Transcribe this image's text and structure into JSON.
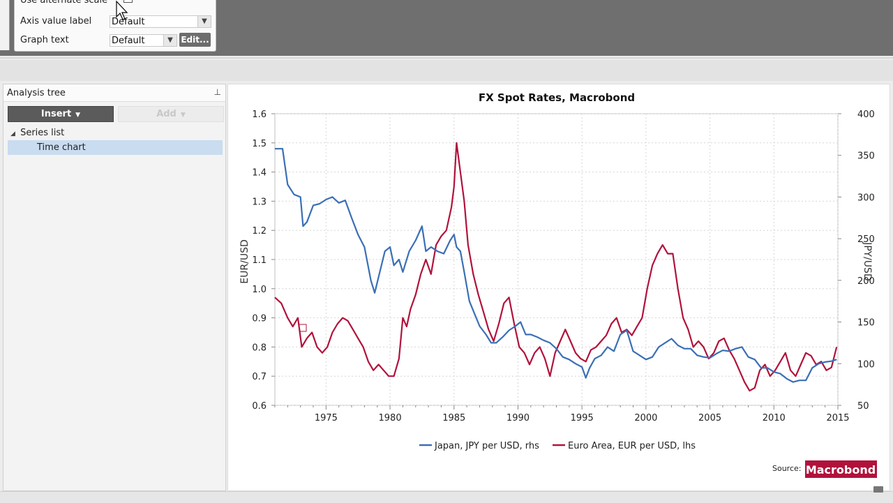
{
  "properties": {
    "use_alternate_scale_label": "Use alternate scale",
    "use_alternate_scale_check": "✓",
    "axis_value_label": "Axis value label",
    "axis_value_value": "Default",
    "graph_text_label": "Graph text",
    "graph_text_value": "Default",
    "edit_button": "Edit..."
  },
  "analysis_tree": {
    "title": "Analysis tree",
    "insert_button": "Insert",
    "add_button": "Add",
    "items": [
      {
        "label": "Series list"
      },
      {
        "label": "Time chart"
      }
    ]
  },
  "chart": {
    "source_label": "Source:",
    "logo_text": "Macrobond",
    "colors": {
      "japan": "#3a6fb5",
      "euro": "#b1123c"
    }
  },
  "chart_data": {
    "type": "line",
    "title": "FX Spot Rates, Macrobond",
    "ylabel_left": "EUR/USD",
    "ylabel_right": "JPY/USD",
    "xlim": [
      1971,
      2015
    ],
    "ylim_left": [
      0.6,
      1.6
    ],
    "ylim_right": [
      50,
      400
    ],
    "x_ticks": [
      "1975",
      "1980",
      "1985",
      "1990",
      "1995",
      "2000",
      "2005",
      "2010",
      "2015"
    ],
    "y_left_ticks": [
      "0.6",
      "0.7",
      "0.8",
      "0.9",
      "1.0",
      "1.1",
      "1.2",
      "1.3",
      "1.4",
      "1.5",
      "1.6"
    ],
    "y_right_ticks": [
      "50",
      "100",
      "150",
      "200",
      "250",
      "300",
      "350",
      "400"
    ],
    "series": [
      {
        "name": "Japan, JPY per USD, rhs",
        "axis": "right",
        "x": [
          1971.0,
          1971.6,
          1972.0,
          1972.5,
          1973.0,
          1973.2,
          1973.5,
          1974.0,
          1974.5,
          1975.0,
          1975.5,
          1976.0,
          1976.5,
          1977.0,
          1977.5,
          1978.0,
          1978.5,
          1978.8,
          1979.2,
          1979.6,
          1980.0,
          1980.3,
          1980.7,
          1981.0,
          1981.5,
          1982.0,
          1982.5,
          1982.8,
          1983.2,
          1983.7,
          1984.2,
          1984.7,
          1985.0,
          1985.2,
          1985.5,
          1985.8,
          1986.2,
          1986.6,
          1987.0,
          1987.5,
          1987.9,
          1988.3,
          1988.8,
          1989.3,
          1989.8,
          1990.2,
          1990.6,
          1991.0,
          1991.5,
          1992.0,
          1992.5,
          1993.0,
          1993.5,
          1994.0,
          1994.5,
          1995.0,
          1995.3,
          1995.6,
          1996.0,
          1996.5,
          1997.0,
          1997.5,
          1998.0,
          1998.5,
          1999.0,
          1999.5,
          2000.0,
          2000.5,
          2001.0,
          2001.5,
          2002.0,
          2002.5,
          2003.0,
          2003.5,
          2004.0,
          2004.5,
          2005.0,
          2005.5,
          2006.0,
          2006.5,
          2007.0,
          2007.5,
          2008.0,
          2008.5,
          2009.0,
          2009.5,
          2010.0,
          2010.5,
          2011.0,
          2011.5,
          2012.0,
          2012.5,
          2013.0,
          2013.5,
          2014.0,
          2014.5,
          2014.9
        ],
        "values": [
          358,
          358,
          315,
          303,
          300,
          265,
          270,
          290,
          292,
          297,
          300,
          293,
          296,
          275,
          255,
          240,
          200,
          185,
          210,
          235,
          240,
          218,
          225,
          210,
          235,
          248,
          265,
          235,
          240,
          235,
          232,
          248,
          255,
          240,
          235,
          210,
          175,
          160,
          145,
          135,
          125,
          125,
          132,
          140,
          145,
          150,
          135,
          135,
          132,
          128,
          125,
          118,
          108,
          105,
          100,
          96,
          83,
          95,
          106,
          110,
          120,
          115,
          135,
          140,
          115,
          110,
          105,
          108,
          120,
          125,
          130,
          122,
          118,
          118,
          110,
          108,
          107,
          112,
          116,
          115,
          118,
          120,
          108,
          105,
          95,
          95,
          90,
          88,
          82,
          78,
          80,
          80,
          95,
          100,
          102,
          103,
          105
        ]
      },
      {
        "name": "Euro Area, EUR per USD, lhs",
        "axis": "left",
        "x": [
          1971.0,
          1971.5,
          1972.0,
          1972.4,
          1972.8,
          1973.1,
          1973.5,
          1973.9,
          1974.3,
          1974.7,
          1975.1,
          1975.5,
          1975.9,
          1976.3,
          1976.7,
          1977.1,
          1977.5,
          1977.9,
          1978.3,
          1978.7,
          1979.1,
          1979.5,
          1979.9,
          1980.3,
          1980.7,
          1981.0,
          1981.3,
          1981.6,
          1982.0,
          1982.4,
          1982.8,
          1983.2,
          1983.6,
          1984.0,
          1984.4,
          1984.8,
          1985.0,
          1985.2,
          1985.5,
          1985.8,
          1986.1,
          1986.5,
          1986.9,
          1987.3,
          1987.7,
          1988.1,
          1988.5,
          1988.9,
          1989.3,
          1989.7,
          1990.1,
          1990.5,
          1990.9,
          1991.3,
          1991.7,
          1992.1,
          1992.5,
          1992.9,
          1993.3,
          1993.7,
          1994.1,
          1994.5,
          1994.9,
          1995.3,
          1995.7,
          1996.1,
          1996.5,
          1996.9,
          1997.3,
          1997.7,
          1998.1,
          1998.5,
          1998.9,
          1999.3,
          1999.7,
          2000.1,
          2000.5,
          2000.9,
          2001.3,
          2001.7,
          2002.1,
          2002.5,
          2002.9,
          2003.3,
          2003.7,
          2004.1,
          2004.5,
          2004.9,
          2005.3,
          2005.7,
          2006.1,
          2006.5,
          2006.9,
          2007.3,
          2007.7,
          2008.1,
          2008.5,
          2008.9,
          2009.3,
          2009.7,
          2010.1,
          2010.5,
          2010.9,
          2011.3,
          2011.7,
          2012.1,
          2012.5,
          2012.9,
          2013.3,
          2013.7,
          2014.1,
          2014.5,
          2014.9
        ],
        "values": [
          0.97,
          0.95,
          0.9,
          0.87,
          0.9,
          0.8,
          0.83,
          0.85,
          0.8,
          0.78,
          0.8,
          0.85,
          0.88,
          0.9,
          0.89,
          0.86,
          0.83,
          0.8,
          0.75,
          0.72,
          0.74,
          0.72,
          0.7,
          0.7,
          0.76,
          0.9,
          0.87,
          0.93,
          0.98,
          1.05,
          1.1,
          1.05,
          1.15,
          1.18,
          1.2,
          1.28,
          1.35,
          1.5,
          1.4,
          1.3,
          1.15,
          1.05,
          0.98,
          0.92,
          0.86,
          0.82,
          0.88,
          0.95,
          0.97,
          0.88,
          0.8,
          0.78,
          0.74,
          0.78,
          0.8,
          0.76,
          0.7,
          0.78,
          0.82,
          0.86,
          0.82,
          0.78,
          0.76,
          0.75,
          0.79,
          0.8,
          0.82,
          0.84,
          0.88,
          0.9,
          0.85,
          0.86,
          0.84,
          0.87,
          0.9,
          1.0,
          1.08,
          1.12,
          1.15,
          1.12,
          1.12,
          1.0,
          0.9,
          0.86,
          0.8,
          0.82,
          0.8,
          0.76,
          0.78,
          0.82,
          0.83,
          0.79,
          0.76,
          0.72,
          0.68,
          0.65,
          0.66,
          0.72,
          0.74,
          0.7,
          0.72,
          0.75,
          0.78,
          0.72,
          0.7,
          0.74,
          0.78,
          0.77,
          0.74,
          0.75,
          0.72,
          0.73,
          0.8
        ]
      }
    ]
  }
}
